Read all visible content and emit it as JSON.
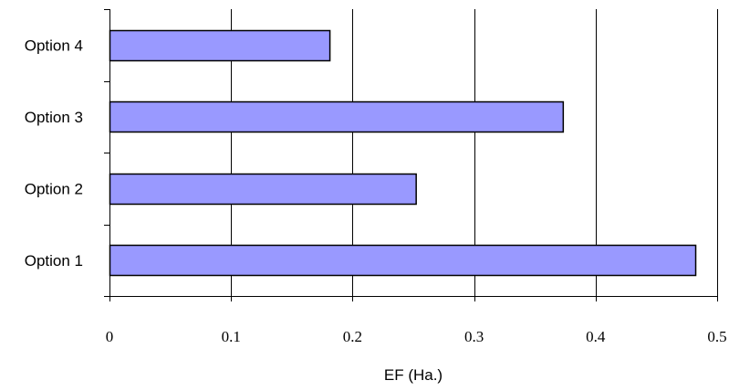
{
  "chart_data": {
    "type": "bar",
    "orientation": "horizontal",
    "categories": [
      "Option 1",
      "Option 2",
      "Option 3",
      "Option 4"
    ],
    "values": [
      0.482,
      0.252,
      0.373,
      0.181
    ],
    "xlabel": "EF (Ha.)",
    "ylabel": "",
    "xlim": [
      0,
      0.5
    ],
    "xticks": [
      "0",
      "0.1",
      "0.2",
      "0.3",
      "0.4",
      "0.5"
    ],
    "grid": "vertical",
    "colors": {
      "bar_fill": "#9999ff",
      "bar_stroke": "#000000"
    }
  }
}
